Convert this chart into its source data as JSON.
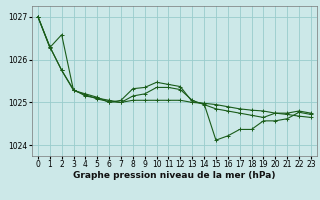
{
  "title": "Graphe pression niveau de la mer (hPa)",
  "background_color": "#cce8e8",
  "grid_color": "#99cccc",
  "line_color": "#1a5c1a",
  "hours": [
    0,
    1,
    2,
    3,
    4,
    5,
    6,
    7,
    8,
    9,
    10,
    11,
    12,
    13,
    14,
    15,
    16,
    17,
    18,
    19,
    20,
    21,
    22,
    23
  ],
  "line1": [
    1027.0,
    1026.3,
    1025.75,
    1025.3,
    1025.15,
    1025.1,
    1025.05,
    1025.0,
    1025.15,
    1025.2,
    1025.35,
    1025.35,
    1025.3,
    1025.05,
    1024.95,
    1024.85,
    1024.8,
    1024.75,
    1024.7,
    1024.65,
    1024.75,
    1024.75,
    1024.8,
    1024.75
  ],
  "line2": [
    1027.0,
    1026.3,
    1025.75,
    1025.28,
    1025.2,
    1025.12,
    1025.0,
    1025.05,
    1025.32,
    1025.35,
    1025.47,
    1025.42,
    1025.37,
    1025.02,
    1024.97,
    1024.12,
    1024.22,
    1024.37,
    1024.37,
    1024.57,
    1024.57,
    1024.62,
    1024.77,
    1024.72
  ],
  "line3": [
    1027.0,
    1026.28,
    1026.58,
    1025.28,
    1025.18,
    1025.08,
    1025.02,
    1025.0,
    1025.05,
    1025.05,
    1025.05,
    1025.05,
    1025.05,
    1025.0,
    1024.98,
    1024.95,
    1024.9,
    1024.85,
    1024.82,
    1024.8,
    1024.75,
    1024.72,
    1024.68,
    1024.65
  ],
  "ylim": [
    1023.75,
    1027.25
  ],
  "yticks": [
    1024,
    1025,
    1026,
    1027
  ],
  "xticks": [
    0,
    1,
    2,
    3,
    4,
    5,
    6,
    7,
    8,
    9,
    10,
    11,
    12,
    13,
    14,
    15,
    16,
    17,
    18,
    19,
    20,
    21,
    22,
    23
  ],
  "tick_fontsize": 5.5,
  "title_fontsize": 6.5,
  "figsize": [
    3.2,
    2.0
  ],
  "dpi": 100
}
